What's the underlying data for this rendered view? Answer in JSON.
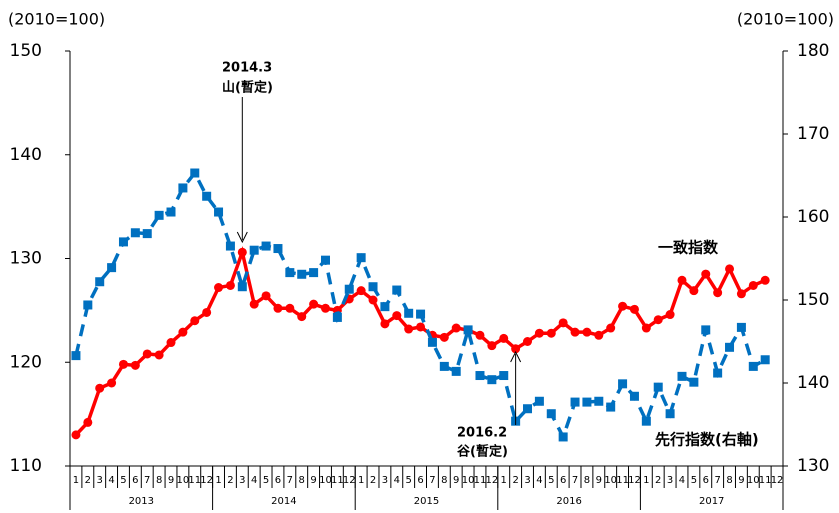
{
  "chart_data": {
    "type": "line",
    "y_unit_label": "(2010=100)",
    "y2_unit_label": "(2010=100)",
    "categories": [
      "1",
      "2",
      "3",
      "4",
      "5",
      "6",
      "7",
      "8",
      "9",
      "10",
      "11",
      "12",
      "1",
      "2",
      "3",
      "4",
      "5",
      "6",
      "7",
      "8",
      "9",
      "10",
      "11",
      "12",
      "1",
      "2",
      "3",
      "4",
      "5",
      "6",
      "7",
      "8",
      "9",
      "10",
      "11",
      "12",
      "1",
      "2",
      "3",
      "4",
      "5",
      "6",
      "7",
      "8",
      "9",
      "10",
      "11",
      "12",
      "1",
      "2",
      "3",
      "4",
      "5",
      "6",
      "7",
      "8",
      "9",
      "10",
      "11",
      "12"
    ],
    "years": [
      "2013",
      "2014",
      "2015",
      "2016",
      "2017"
    ],
    "ylim": [
      110,
      150
    ],
    "yticks": [
      110,
      120,
      130,
      140,
      150
    ],
    "y2lim": [
      130,
      180
    ],
    "y2ticks": [
      130,
      140,
      150,
      160,
      170,
      180
    ],
    "series": [
      {
        "name": "一致指数",
        "color": "#ff0000",
        "values": [
          113.0,
          114.2,
          117.5,
          118.0,
          119.8,
          119.7,
          120.8,
          120.7,
          121.9,
          122.9,
          124.0,
          124.8,
          127.2,
          127.4,
          130.6,
          125.6,
          126.4,
          125.2,
          125.2,
          124.4,
          125.6,
          125.2,
          125.0,
          126.1,
          126.9,
          126.0,
          123.7,
          124.5,
          123.2,
          123.4,
          122.6,
          122.4,
          123.3,
          123.1,
          122.6,
          121.6,
          122.3,
          121.3,
          122.0,
          122.8,
          122.8,
          123.8,
          122.9,
          122.9,
          122.6,
          123.3,
          125.4,
          125.1,
          123.3,
          124.1,
          124.6,
          127.9,
          126.9,
          128.5,
          126.7,
          129.0,
          126.6,
          127.4,
          127.9,
          null
        ]
      },
      {
        "name": "先行指数(右軸)",
        "color": "#0070c0",
        "axis": "y2",
        "values": [
          143.3,
          149.4,
          152.2,
          153.9,
          157.0,
          158.1,
          158.0,
          160.2,
          160.6,
          163.5,
          165.3,
          162.5,
          160.6,
          156.5,
          151.6,
          156.0,
          156.5,
          156.2,
          153.3,
          153.1,
          153.3,
          154.8,
          147.9,
          151.3,
          155.1,
          151.6,
          149.2,
          151.2,
          148.4,
          148.3,
          144.9,
          142.0,
          141.4,
          146.4,
          140.9,
          140.4,
          140.9,
          135.4,
          136.9,
          137.8,
          136.3,
          133.5,
          137.7,
          137.7,
          137.8,
          137.1,
          139.9,
          138.4,
          135.4,
          139.5,
          136.3,
          140.8,
          140.1,
          146.4,
          141.2,
          144.3,
          146.7,
          142.0,
          142.8,
          null
        ]
      }
    ],
    "annotations": [
      "2014.3",
      "山(暫定)",
      "2016.2",
      "谷(暫定)"
    ]
  }
}
